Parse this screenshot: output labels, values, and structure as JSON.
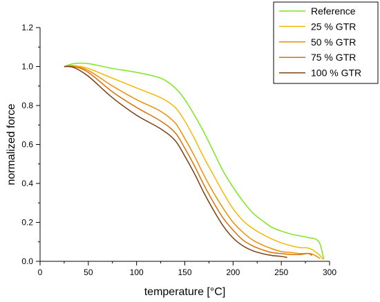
{
  "chart_data": {
    "type": "line",
    "xlabel": "temperature [°C]",
    "ylabel": "normalized force",
    "xlim": [
      0,
      300
    ],
    "ylim": [
      0,
      1.2
    ],
    "x_ticks": [
      0,
      50,
      100,
      150,
      200,
      250,
      300
    ],
    "x_tick_labels": [
      "0",
      "50",
      "100",
      "150",
      "200",
      "250",
      "300"
    ],
    "y_ticks": [
      0,
      0.2,
      0.4,
      0.6,
      0.8,
      1.0,
      1.2
    ],
    "y_tick_labels": [
      "0.0",
      "0.2",
      "0.4",
      "0.6",
      "0.8",
      "1.0",
      "1.2"
    ],
    "grid": false,
    "legend_position": "top-right",
    "series": [
      {
        "name": "Reference",
        "color": "#7de61f",
        "x": [
          25,
          35,
          50,
          75,
          100,
          125,
          140,
          150,
          160,
          170,
          180,
          190,
          200,
          210,
          220,
          230,
          240,
          250,
          260,
          270,
          280,
          285,
          290,
          294
        ],
        "y": [
          1.0,
          1.015,
          1.015,
          0.99,
          0.97,
          0.94,
          0.89,
          0.83,
          0.75,
          0.66,
          0.56,
          0.46,
          0.38,
          0.31,
          0.25,
          0.21,
          0.175,
          0.155,
          0.14,
          0.13,
          0.12,
          0.115,
          0.09,
          0.01
        ]
      },
      {
        "name": "25 % GTR",
        "color": "#f5b800",
        "x": [
          25,
          35,
          50,
          75,
          100,
          125,
          140,
          150,
          160,
          170,
          180,
          190,
          200,
          210,
          220,
          230,
          240,
          250,
          260,
          270,
          275,
          280,
          285,
          290,
          293
        ],
        "y": [
          1.0,
          1.005,
          0.99,
          0.94,
          0.89,
          0.84,
          0.79,
          0.72,
          0.63,
          0.53,
          0.44,
          0.35,
          0.27,
          0.21,
          0.17,
          0.14,
          0.115,
          0.095,
          0.08,
          0.07,
          0.07,
          0.065,
          0.05,
          0.03,
          0.01
        ]
      },
      {
        "name": "50 % GTR",
        "color": "#f08c00",
        "x": [
          25,
          35,
          50,
          75,
          100,
          125,
          140,
          150,
          160,
          170,
          180,
          190,
          200,
          210,
          220,
          230,
          240,
          250,
          260,
          270,
          280,
          285,
          290
        ],
        "y": [
          1.0,
          1.0,
          0.98,
          0.9,
          0.83,
          0.77,
          0.71,
          0.63,
          0.54,
          0.44,
          0.35,
          0.27,
          0.2,
          0.15,
          0.11,
          0.085,
          0.065,
          0.05,
          0.045,
          0.04,
          0.04,
          0.03,
          0.015
        ]
      },
      {
        "name": "75 % GTR",
        "color": "#d96f00",
        "x": [
          25,
          35,
          50,
          75,
          100,
          125,
          140,
          150,
          160,
          170,
          180,
          190,
          200,
          210,
          220,
          230,
          240,
          250,
          260,
          270,
          278,
          282
        ],
        "y": [
          1.0,
          1.0,
          0.97,
          0.87,
          0.79,
          0.72,
          0.66,
          0.58,
          0.49,
          0.39,
          0.3,
          0.22,
          0.16,
          0.11,
          0.08,
          0.06,
          0.045,
          0.04,
          0.035,
          0.035,
          0.04,
          0.03
        ]
      },
      {
        "name": "100 % GTR",
        "color": "#7a3d10",
        "x": [
          25,
          35,
          50,
          75,
          100,
          125,
          140,
          150,
          160,
          170,
          180,
          190,
          200,
          210,
          220,
          230,
          240,
          250,
          256
        ],
        "y": [
          1.0,
          0.995,
          0.95,
          0.84,
          0.75,
          0.68,
          0.62,
          0.54,
          0.45,
          0.35,
          0.26,
          0.18,
          0.12,
          0.08,
          0.055,
          0.04,
          0.03,
          0.025,
          0.02
        ]
      }
    ]
  }
}
